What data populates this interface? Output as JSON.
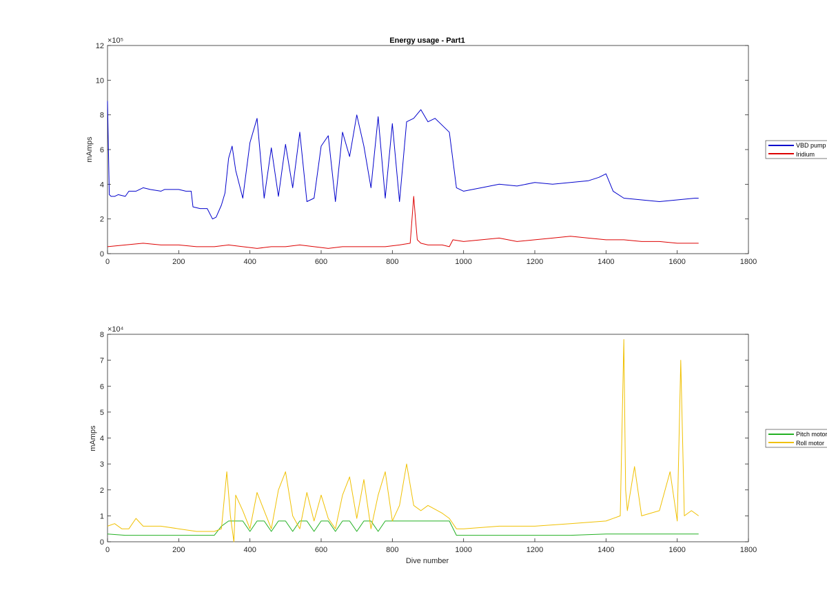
{
  "chart_data": [
    {
      "type": "line",
      "title": "Energy usage - Part1",
      "xlabel": "",
      "ylabel": "mAmps",
      "xlim": [
        0,
        1800
      ],
      "ylim": [
        0,
        1200000
      ],
      "x_ticks": [
        0,
        200,
        400,
        600,
        800,
        1000,
        1200,
        1400,
        1600,
        1800
      ],
      "y_ticks": [
        0,
        2,
        4,
        6,
        8,
        10,
        12
      ],
      "y_exponent_label": "×10⁵",
      "grid": false,
      "legend_position": "outside-right",
      "series": [
        {
          "name": "VBD pump",
          "color": "#0000cc",
          "x": [
            0,
            5,
            10,
            20,
            30,
            50,
            60,
            80,
            100,
            120,
            150,
            160,
            180,
            200,
            220,
            235,
            240,
            260,
            280,
            295,
            305,
            320,
            330,
            340,
            350,
            360,
            380,
            400,
            420,
            440,
            460,
            480,
            500,
            520,
            540,
            560,
            580,
            600,
            620,
            640,
            660,
            680,
            700,
            720,
            740,
            760,
            780,
            800,
            820,
            840,
            860,
            880,
            900,
            920,
            940,
            960,
            980,
            1000,
            1050,
            1100,
            1150,
            1200,
            1250,
            1300,
            1350,
            1380,
            1400,
            1420,
            1450,
            1500,
            1550,
            1600,
            1650,
            1660
          ],
          "y": [
            880000,
            340000,
            330000,
            330000,
            340000,
            330000,
            360000,
            360000,
            380000,
            370000,
            360000,
            370000,
            370000,
            370000,
            360000,
            360000,
            270000,
            260000,
            260000,
            200000,
            210000,
            280000,
            350000,
            550000,
            620000,
            480000,
            320000,
            640000,
            780000,
            320000,
            610000,
            330000,
            630000,
            380000,
            700000,
            300000,
            320000,
            620000,
            680000,
            300000,
            700000,
            560000,
            800000,
            620000,
            380000,
            790000,
            320000,
            750000,
            300000,
            760000,
            780000,
            830000,
            760000,
            780000,
            740000,
            700000,
            380000,
            360000,
            380000,
            400000,
            390000,
            410000,
            400000,
            410000,
            420000,
            440000,
            460000,
            360000,
            320000,
            310000,
            300000,
            310000,
            320000,
            320000
          ]
        },
        {
          "name": "Iridium",
          "color": "#dd0000",
          "x": [
            0,
            50,
            100,
            150,
            200,
            250,
            300,
            340,
            380,
            420,
            460,
            500,
            540,
            580,
            620,
            660,
            700,
            740,
            780,
            820,
            850,
            860,
            865,
            870,
            880,
            900,
            940,
            960,
            970,
            1000,
            1050,
            1100,
            1150,
            1200,
            1250,
            1300,
            1350,
            1400,
            1450,
            1500,
            1550,
            1600,
            1660
          ],
          "y": [
            40000,
            50000,
            60000,
            50000,
            50000,
            40000,
            40000,
            50000,
            40000,
            30000,
            40000,
            40000,
            50000,
            40000,
            30000,
            40000,
            40000,
            40000,
            40000,
            50000,
            60000,
            330000,
            200000,
            80000,
            60000,
            50000,
            50000,
            40000,
            80000,
            70000,
            80000,
            90000,
            70000,
            80000,
            90000,
            100000,
            90000,
            80000,
            80000,
            70000,
            70000,
            60000,
            60000
          ]
        }
      ]
    },
    {
      "type": "line",
      "title": "",
      "xlabel": "Dive number",
      "ylabel": "mAmps",
      "xlim": [
        0,
        1800
      ],
      "ylim": [
        0,
        80000
      ],
      "x_ticks": [
        0,
        200,
        400,
        600,
        800,
        1000,
        1200,
        1400,
        1600,
        1800
      ],
      "y_ticks": [
        0,
        1,
        2,
        3,
        4,
        5,
        6,
        7,
        8
      ],
      "y_exponent_label": "×10⁴",
      "grid": false,
      "legend_position": "outside-right",
      "series": [
        {
          "name": "Pitch motor",
          "color": "#22b022",
          "x": [
            0,
            50,
            100,
            150,
            200,
            250,
            300,
            320,
            340,
            380,
            400,
            420,
            440,
            460,
            480,
            500,
            520,
            540,
            560,
            580,
            600,
            620,
            640,
            660,
            680,
            700,
            720,
            740,
            760,
            780,
            800,
            820,
            840,
            860,
            900,
            940,
            960,
            980,
            1050,
            1100,
            1200,
            1300,
            1400,
            1500,
            1600,
            1660
          ],
          "y": [
            3000,
            2500,
            2500,
            2500,
            2500,
            2500,
            2500,
            6000,
            8000,
            8000,
            4000,
            8000,
            8000,
            4000,
            8000,
            8000,
            4000,
            8000,
            8000,
            4000,
            8000,
            8000,
            4000,
            8000,
            8000,
            4000,
            8000,
            8000,
            4000,
            8000,
            8000,
            8000,
            8000,
            8000,
            8000,
            8000,
            8000,
            2500,
            2500,
            2500,
            2500,
            2500,
            3000,
            3000,
            3000,
            3000
          ]
        },
        {
          "name": "Roll motor",
          "color": "#f0c000",
          "x": [
            0,
            20,
            40,
            60,
            80,
            100,
            150,
            200,
            250,
            300,
            320,
            335,
            345,
            355,
            360,
            380,
            400,
            420,
            440,
            460,
            480,
            500,
            520,
            540,
            560,
            580,
            600,
            620,
            640,
            660,
            680,
            700,
            720,
            740,
            760,
            780,
            800,
            820,
            840,
            860,
            880,
            900,
            940,
            960,
            980,
            1000,
            1100,
            1200,
            1300,
            1400,
            1440,
            1450,
            1455,
            1460,
            1480,
            1500,
            1550,
            1580,
            1600,
            1610,
            1615,
            1620,
            1640,
            1660
          ],
          "y": [
            6000,
            7000,
            5000,
            5000,
            9000,
            6000,
            6000,
            5000,
            4000,
            4000,
            5000,
            27000,
            10000,
            0,
            18000,
            12000,
            5000,
            19000,
            12000,
            5000,
            20000,
            27000,
            10000,
            5000,
            19000,
            8000,
            18000,
            9000,
            5000,
            18000,
            25000,
            9000,
            24000,
            5000,
            18000,
            27000,
            8000,
            14000,
            30000,
            14000,
            12000,
            14000,
            11000,
            9000,
            5000,
            5000,
            6000,
            6000,
            7000,
            8000,
            10000,
            78000,
            20000,
            12000,
            29000,
            10000,
            12000,
            27000,
            8000,
            70000,
            40000,
            10000,
            12000,
            10000
          ]
        }
      ]
    }
  ]
}
